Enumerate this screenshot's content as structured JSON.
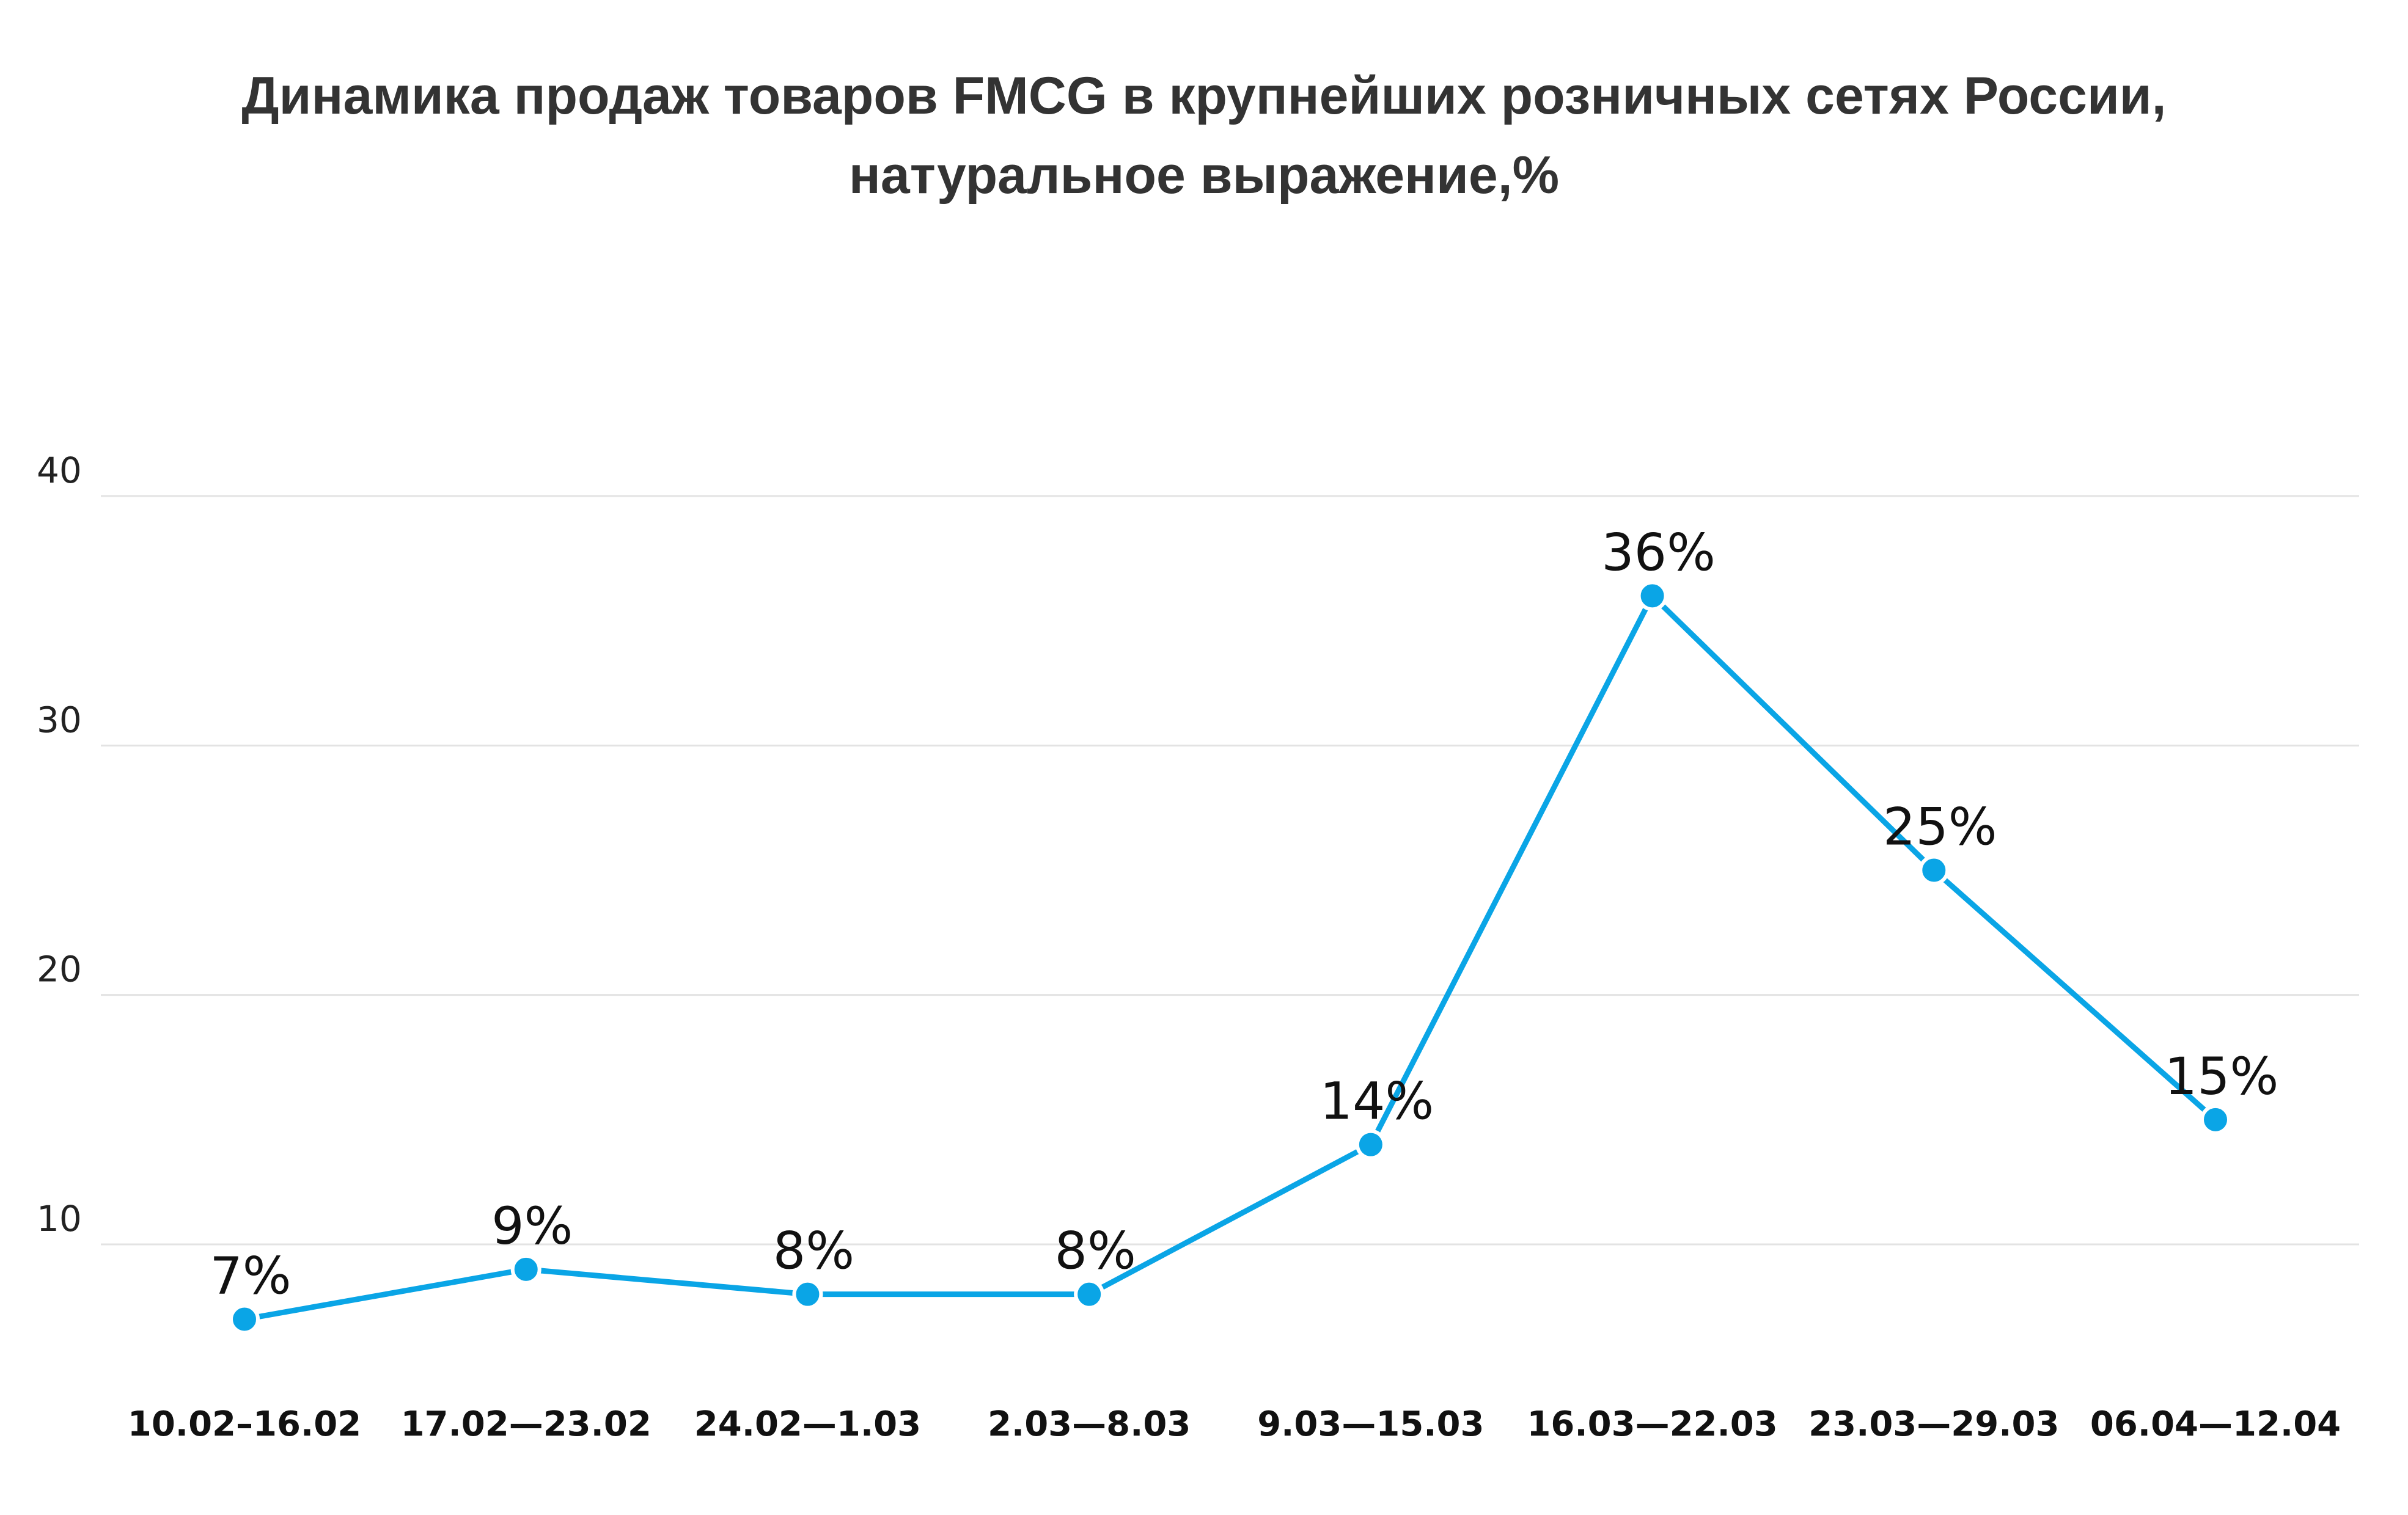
{
  "chart_data": {
    "type": "line",
    "title_lines": [
      "Динамика продаж товаров FMCG в крупнейших розничных сетях России,",
      "натуральное выражение,%"
    ],
    "xlabel": "",
    "ylabel": "",
    "categories": [
      "10.02–16.02",
      "17.02—23.02",
      "24.02—1.03",
      "2.03—8.03",
      "9.03—15.03",
      "16.03—22.03",
      "23.03—29.03",
      "06.04—12.04"
    ],
    "series": [
      {
        "values": [
          7,
          9,
          8,
          8,
          14,
          36,
          25,
          15
        ],
        "data_labels": [
          "7%",
          "9%",
          "8%",
          "8%",
          "14%",
          "36%",
          "25%",
          "15%"
        ],
        "color": "#0AA5E6"
      }
    ],
    "yticks": [
      "10",
      "20",
      "30",
      "40"
    ],
    "ylim": [
      5,
      40
    ],
    "grid": true,
    "legend": "none"
  }
}
